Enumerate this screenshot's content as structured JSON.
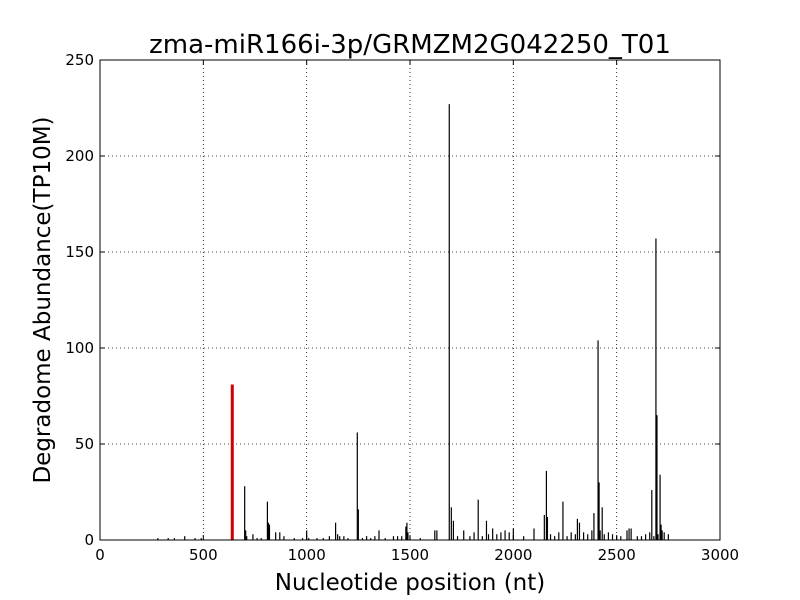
{
  "chart_data": {
    "type": "bar",
    "title": "zma-miR166i-3p/GRMZM2G042250_T01",
    "xlabel": "Nucleotide position (nt)",
    "ylabel": "Degradome Abundance(TP10M)",
    "xlim": [
      0,
      3000
    ],
    "ylim": [
      0,
      250
    ],
    "xticks": [
      0,
      500,
      1000,
      1500,
      2000,
      2500,
      3000
    ],
    "yticks": [
      0,
      50,
      100,
      150,
      200,
      250
    ],
    "grid": true,
    "colors": {
      "target": "#cc0000",
      "background": "#000000"
    },
    "target_site": {
      "x": 640,
      "y": 81
    },
    "series": [
      {
        "x": [
          280,
          330,
          360,
          410,
          460,
          490,
          700,
          705,
          710,
          740,
          760,
          780,
          810,
          815,
          820,
          850,
          870,
          890,
          940,
          980,
          1000,
          1010,
          1050,
          1080,
          1110,
          1140,
          1150,
          1160,
          1180,
          1200,
          1245,
          1250,
          1270,
          1290,
          1310,
          1330,
          1350,
          1380,
          1420,
          1440,
          1460,
          1480,
          1485,
          1490,
          1500,
          1550,
          1620,
          1630,
          1690,
          1700,
          1710,
          1730,
          1760,
          1790,
          1810,
          1830,
          1850,
          1870,
          1880,
          1900,
          1920,
          1940,
          1960,
          1980,
          2000,
          2050,
          2100,
          2150,
          2160,
          2165,
          2180,
          2200,
          2220,
          2240,
          2260,
          2280,
          2300,
          2310,
          2320,
          2340,
          2360,
          2380,
          2390,
          2410,
          2415,
          2420,
          2430,
          2440,
          2460,
          2480,
          2500,
          2520,
          2550,
          2560,
          2570,
          2600,
          2620,
          2640,
          2660,
          2670,
          2680,
          2690,
          2695,
          2700,
          2710,
          2715,
          2720,
          2730,
          2750
        ],
        "values": [
          1,
          1,
          1,
          2,
          1,
          1,
          28,
          5,
          2,
          3,
          1,
          1,
          20,
          9,
          8,
          4,
          4,
          2,
          1,
          1,
          5,
          1,
          1,
          1,
          2,
          9,
          3,
          2,
          2,
          1,
          56,
          16,
          1,
          2,
          1,
          2,
          5,
          1,
          2,
          2,
          2,
          7,
          9,
          4,
          2,
          1,
          5,
          5,
          227,
          17,
          10,
          2,
          5,
          2,
          4,
          21,
          2,
          10,
          3,
          6,
          3,
          4,
          5,
          4,
          6,
          2,
          6,
          13,
          36,
          12,
          3,
          2,
          4,
          20,
          2,
          4,
          3,
          11,
          9,
          4,
          3,
          5,
          14,
          104,
          30,
          5,
          17,
          3,
          4,
          3,
          2,
          2,
          5,
          6,
          6,
          2,
          2,
          3,
          4,
          26,
          2,
          157,
          65,
          3,
          34,
          8,
          5,
          4,
          3
        ]
      }
    ]
  }
}
